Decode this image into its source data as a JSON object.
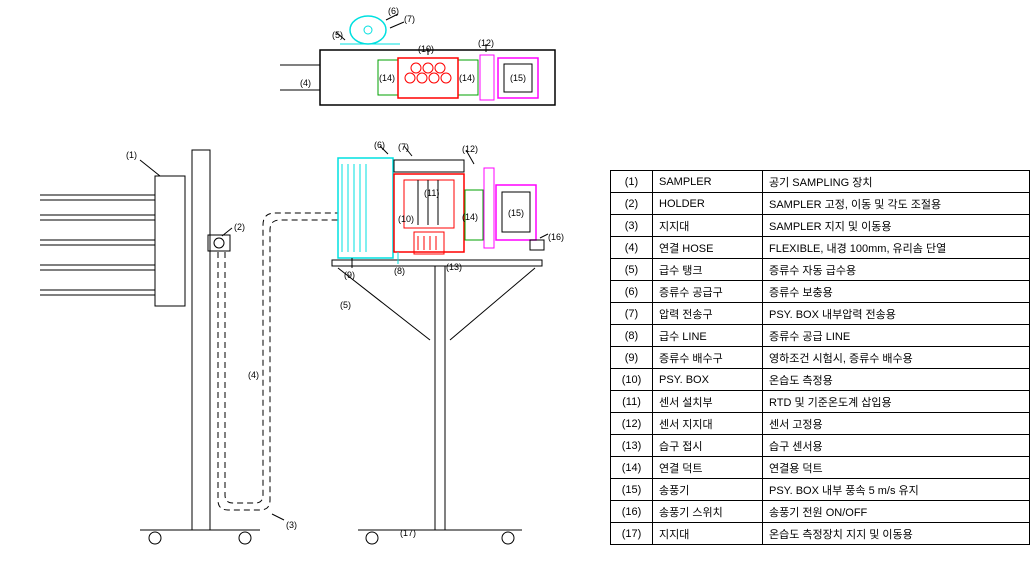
{
  "colors": {
    "black": "#000000",
    "red": "#ff0000",
    "cyan": "#00e0e0",
    "magenta": "#ff00ff",
    "green": "#00a000",
    "white": "#ffffff"
  },
  "parts": [
    {
      "num": "(1)",
      "name": "SAMPLER",
      "desc": "공기 SAMPLING 장치"
    },
    {
      "num": "(2)",
      "name": "HOLDER",
      "desc": "SAMPLER  고정, 이동 및 각도 조절용"
    },
    {
      "num": "(3)",
      "name": "지지대",
      "desc": "SAMPLER 지지 및 이동용"
    },
    {
      "num": "(4)",
      "name": "연결 HOSE",
      "desc": "FLEXIBLE, 내경 100mm, 유리솜 단열"
    },
    {
      "num": "(5)",
      "name": "급수 탱크",
      "desc": "증류수 자동 급수용"
    },
    {
      "num": "(6)",
      "name": "증류수 공급구",
      "desc": "증류수 보충용"
    },
    {
      "num": "(7)",
      "name": "압력 전송구",
      "desc": "PSY. BOX 내부압력 전송용"
    },
    {
      "num": "(8)",
      "name": "급수 LINE",
      "desc": "증류수 공급 LINE"
    },
    {
      "num": "(9)",
      "name": "증류수 배수구",
      "desc": "영하조건 시험시, 증류수 배수용"
    },
    {
      "num": "(10)",
      "name": "PSY.  BOX",
      "desc": "온습도 측정용"
    },
    {
      "num": "(11)",
      "name": "센서 설치부",
      "desc": "RTD 및 기준온도계 삽입용"
    },
    {
      "num": "(12)",
      "name": "센서 지지대",
      "desc": "센서 고정용"
    },
    {
      "num": "(13)",
      "name": "습구 접시",
      "desc": "습구 센서용"
    },
    {
      "num": "(14)",
      "name": "연결 덕트",
      "desc": "연결용 덕트"
    },
    {
      "num": "(15)",
      "name": "송풍기",
      "desc": "PSY. BOX 내부 풍속 5 m/s 유지"
    },
    {
      "num": "(16)",
      "name": "송풍기 스위치",
      "desc": "송풍기 전원 ON/OFF"
    },
    {
      "num": "(17)",
      "name": "지지대",
      "desc": "온습도 측정장치 지지 및 이동용"
    }
  ],
  "labels": {
    "top": {
      "l4": "(4)",
      "l5": "(5)",
      "l6": "(6)",
      "l7": "(7)",
      "l10": "(10)",
      "l12": "(12)",
      "l14a": "(14)",
      "l14b": "(14)",
      "l15": "(15)"
    },
    "side": {
      "l1": "(1)",
      "l2": "(2)",
      "l3": "(3)",
      "l4": "(4)",
      "l5": "(5)",
      "l6": "(6)",
      "l7": "(7)",
      "l8": "(8)",
      "l9": "(9)",
      "l10": "(10)",
      "l11": "(11)",
      "l12": "(12)",
      "l13": "(13)",
      "l14": "(14)",
      "l15": "(15)",
      "l16": "(16)",
      "l17": "(17)"
    }
  },
  "styling": {
    "line_width_thin": 1,
    "line_width_med": 1.5,
    "font_size_label": 9,
    "font_size_table": 11,
    "table_row_height": 22
  }
}
